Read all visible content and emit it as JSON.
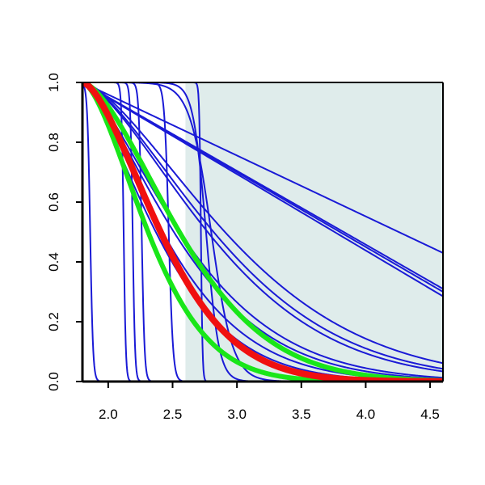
{
  "chart_data": {
    "type": "line",
    "title": "",
    "xlabel": "",
    "ylabel": "",
    "xlim": [
      1.8,
      4.6
    ],
    "ylim": [
      0.0,
      1.0
    ],
    "x_ticks": [
      2.0,
      2.5,
      3.0,
      3.5,
      4.0,
      4.5
    ],
    "x_tick_labels": [
      "2.0",
      "2.5",
      "3.0",
      "3.5",
      "4.0",
      "4.5"
    ],
    "y_ticks": [
      0.0,
      0.2,
      0.4,
      0.6,
      0.8,
      1.0
    ],
    "y_tick_labels": [
      "0.0",
      "0.2",
      "0.4",
      "0.6",
      "0.8",
      "1.0"
    ],
    "shaded_region": {
      "x_from": 2.6,
      "x_to": 4.6,
      "color": "#dfeceb"
    },
    "grid": false,
    "legend": "none",
    "colors": {
      "blue": "#1a1ad6",
      "green": "#19e619",
      "red": "#f01010",
      "axis": "#000000"
    },
    "series": [
      {
        "color": "blue",
        "width": 2,
        "kind": "logistic",
        "x0": 1.86,
        "k": 90
      },
      {
        "color": "blue",
        "width": 2,
        "kind": "logistic",
        "x0": 2.12,
        "k": 120
      },
      {
        "color": "blue",
        "width": 2,
        "kind": "logistic",
        "x0": 2.19,
        "k": 110
      },
      {
        "color": "blue",
        "width": 2,
        "kind": "logistic",
        "x0": 2.26,
        "k": 90
      },
      {
        "color": "blue",
        "width": 2,
        "kind": "logistic",
        "x0": 2.47,
        "k": 60
      },
      {
        "color": "blue",
        "width": 2,
        "kind": "logistic",
        "x0": 2.72,
        "k": 160
      },
      {
        "color": "blue",
        "width": 2,
        "kind": "logistic",
        "x0": 2.76,
        "k": 20
      },
      {
        "color": "blue",
        "width": 2,
        "kind": "logistic",
        "x0": 2.8,
        "k": 12
      },
      {
        "color": "blue",
        "width": 2,
        "kind": "decay",
        "scale": 2.39,
        "power": 1.5
      },
      {
        "color": "blue",
        "width": 2,
        "kind": "decay",
        "scale": 2.2,
        "power": 1.5
      },
      {
        "color": "blue",
        "width": 2,
        "kind": "decay",
        "scale": 2.1,
        "power": 1.5
      },
      {
        "color": "blue",
        "width": 2,
        "kind": "decay",
        "scale": 1.72,
        "power": 1.4
      },
      {
        "color": "blue",
        "width": 2,
        "kind": "decay",
        "scale": 1.62,
        "power": 1.4
      },
      {
        "color": "blue",
        "width": 2,
        "kind": "decay",
        "scale": 1.42,
        "power": 1.4
      },
      {
        "color": "blue",
        "width": 2,
        "kind": "decay",
        "scale": 1.3,
        "power": 1.4
      },
      {
        "color": "blue",
        "width": 2,
        "kind": "linear",
        "x0": 1.8,
        "x1": 4.6,
        "y0": 1.0,
        "y1": 0.43
      },
      {
        "color": "blue",
        "width": 2,
        "kind": "linear",
        "x0": 1.8,
        "x1": 4.6,
        "y0": 1.0,
        "y1": 0.31
      },
      {
        "color": "blue",
        "width": 2,
        "kind": "linear",
        "x0": 1.8,
        "x1": 4.6,
        "y0": 1.0,
        "y1": 0.3
      },
      {
        "color": "blue",
        "width": 2,
        "kind": "linear",
        "x0": 1.8,
        "x1": 4.6,
        "y0": 1.0,
        "y1": 0.285
      },
      {
        "color": "green",
        "width": 6,
        "kind": "decay",
        "scale": 1.05,
        "power": 1.6
      },
      {
        "color": "green",
        "width": 6,
        "kind": "decay",
        "scale": 1.55,
        "power": 1.6
      },
      {
        "color": "red",
        "width": 8,
        "kind": "decay",
        "scale": 1.25,
        "power": 1.6
      }
    ]
  }
}
